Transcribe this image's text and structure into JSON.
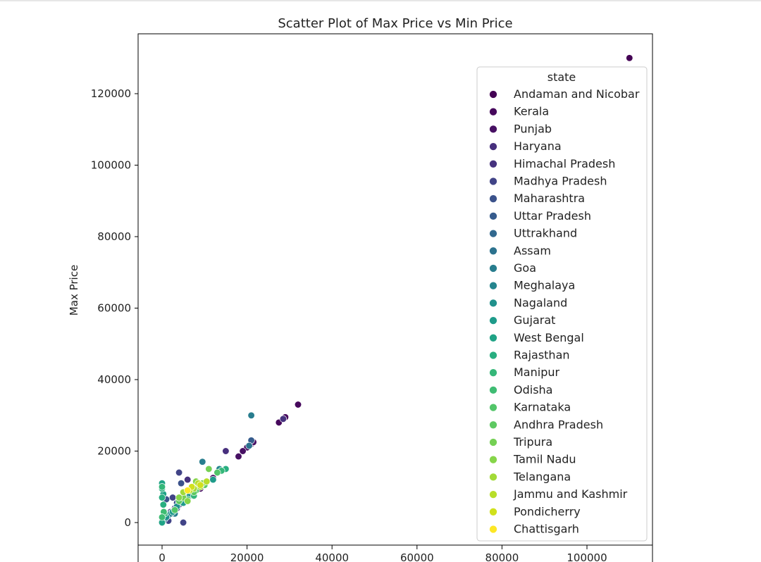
{
  "chart_data": {
    "type": "scatter",
    "title": "Scatter Plot of Max Price vs Min Price",
    "xlabel": "",
    "ylabel": "Max Price",
    "xlim": [
      -5000,
      115000
    ],
    "ylim": [
      -6000,
      136000
    ],
    "x_ticks": [
      "0",
      "20000",
      "40000",
      "60000",
      "80000",
      "100000"
    ],
    "y_ticks": [
      "0",
      "20000",
      "40000",
      "60000",
      "80000",
      "100000",
      "120000"
    ],
    "grid": false,
    "legend_title": "state",
    "legend_position": "right",
    "series": [
      {
        "name": "Andaman and Nicobar",
        "color": "#440154",
        "points": [
          [
            110000,
            130000
          ]
        ]
      },
      {
        "name": "Kerala",
        "color": "#46085c",
        "points": [
          [
            32000,
            33000
          ],
          [
            29000,
            29500
          ],
          [
            27500,
            28000
          ],
          [
            21000,
            22000
          ]
        ]
      },
      {
        "name": "Punjab",
        "color": "#471063",
        "points": [
          [
            21500,
            22500
          ],
          [
            20000,
            21000
          ],
          [
            19000,
            20000
          ],
          [
            18000,
            18500
          ],
          [
            12000,
            12500
          ],
          [
            9000,
            9500
          ]
        ]
      },
      {
        "name": "Haryana",
        "color": "#472f7d",
        "points": [
          [
            15000,
            20000
          ],
          [
            10000,
            11000
          ],
          [
            6000,
            6500
          ],
          [
            3500,
            4000
          ]
        ]
      },
      {
        "name": "Himachal Pradesh",
        "color": "#46327e",
        "points": [
          [
            28500,
            29000
          ],
          [
            6000,
            12000
          ],
          [
            4000,
            5000
          ],
          [
            2000,
            3000
          ]
        ]
      },
      {
        "name": "Madhya Pradesh",
        "color": "#414487",
        "points": [
          [
            4000,
            14000
          ],
          [
            5000,
            0
          ],
          [
            1500,
            500
          ],
          [
            2500,
            7000
          ],
          [
            3000,
            4000
          ]
        ]
      },
      {
        "name": "Maharashtra",
        "color": "#3b528b",
        "points": [
          [
            4500,
            11000
          ],
          [
            1000,
            6500
          ],
          [
            7000,
            8000
          ],
          [
            3500,
            5500
          ],
          [
            2000,
            2500
          ]
        ]
      },
      {
        "name": "Uttar Pradesh",
        "color": "#365c8d",
        "points": [
          [
            21000,
            23000
          ],
          [
            5500,
            6000
          ],
          [
            3000,
            3500
          ],
          [
            1200,
            1800
          ],
          [
            8000,
            9000
          ]
        ]
      },
      {
        "name": "Uttrakhand",
        "color": "#31688e",
        "points": [
          [
            6000,
            7000
          ],
          [
            2500,
            3000
          ],
          [
            500,
            800
          ],
          [
            10000,
            11000
          ]
        ]
      },
      {
        "name": "Assam",
        "color": "#2c728e",
        "points": [
          [
            20500,
            21500
          ],
          [
            1500,
            2000
          ],
          [
            4000,
            5500
          ],
          [
            0,
            300
          ]
        ]
      },
      {
        "name": "Goa",
        "color": "#287d8e",
        "points": [
          [
            21000,
            30000
          ],
          [
            9500,
            17000
          ],
          [
            3000,
            2500
          ]
        ]
      },
      {
        "name": "Meghalaya",
        "color": "#25858e",
        "points": [
          [
            13500,
            15000
          ],
          [
            7500,
            8000
          ],
          [
            2000,
            2500
          ]
        ]
      },
      {
        "name": "Nagaland",
        "color": "#21918c",
        "points": [
          [
            6500,
            7500
          ],
          [
            1000,
            1500
          ],
          [
            3500,
            4500
          ]
        ]
      },
      {
        "name": "Gujarat",
        "color": "#1e9b8a",
        "points": [
          [
            12000,
            12000
          ],
          [
            2500,
            3000
          ],
          [
            5000,
            5500
          ]
        ]
      },
      {
        "name": "West Bengal",
        "color": "#20a386",
        "points": [
          [
            0,
            11000
          ],
          [
            300,
            8000
          ],
          [
            0,
            0
          ]
        ]
      },
      {
        "name": "Rajasthan",
        "color": "#28ae80",
        "points": [
          [
            0,
            9500
          ],
          [
            0,
            7000
          ],
          [
            300,
            5000
          ],
          [
            15000,
            15000
          ]
        ]
      },
      {
        "name": "Manipur",
        "color": "#35b779",
        "points": [
          [
            0,
            10000
          ],
          [
            600,
            2500
          ],
          [
            14000,
            14500
          ],
          [
            7500,
            7500
          ]
        ]
      },
      {
        "name": "Odisha",
        "color": "#3fbc73",
        "points": [
          [
            400,
            3000
          ],
          [
            6000,
            6500
          ],
          [
            0,
            1500
          ]
        ]
      },
      {
        "name": "Karnataka",
        "color": "#52c569",
        "points": [
          [
            8000,
            9000
          ],
          [
            3000,
            3500
          ],
          [
            13000,
            14000
          ]
        ]
      },
      {
        "name": "Andhra Pradesh",
        "color": "#5ec962",
        "points": [
          [
            7500,
            8500
          ],
          [
            4000,
            6000
          ],
          [
            10000,
            10500
          ]
        ]
      },
      {
        "name": "Tripura",
        "color": "#75d054",
        "points": [
          [
            7000,
            9500
          ],
          [
            5000,
            7000
          ],
          [
            11000,
            15000
          ]
        ]
      },
      {
        "name": "Tamil Nadu",
        "color": "#86d549",
        "points": [
          [
            8000,
            11500
          ],
          [
            6000,
            6000
          ],
          [
            9500,
            11000
          ],
          [
            4000,
            7000
          ]
        ]
      },
      {
        "name": "Telangana",
        "color": "#a2da37",
        "points": [
          [
            9000,
            10000
          ],
          [
            7500,
            9500
          ],
          [
            5000,
            8500
          ]
        ]
      },
      {
        "name": "Jammu and Kashmir",
        "color": "#b8de29",
        "points": [
          [
            10500,
            11500
          ],
          [
            6500,
            9000
          ],
          [
            8500,
            11000
          ]
        ]
      },
      {
        "name": "Pondicherry",
        "color": "#d0e11c",
        "points": [
          [
            7000,
            10000
          ],
          [
            9000,
            10500
          ]
        ]
      },
      {
        "name": "Chattisgarh",
        "color": "#fde725",
        "points": [
          [
            6000,
            9000
          ]
        ]
      }
    ]
  }
}
